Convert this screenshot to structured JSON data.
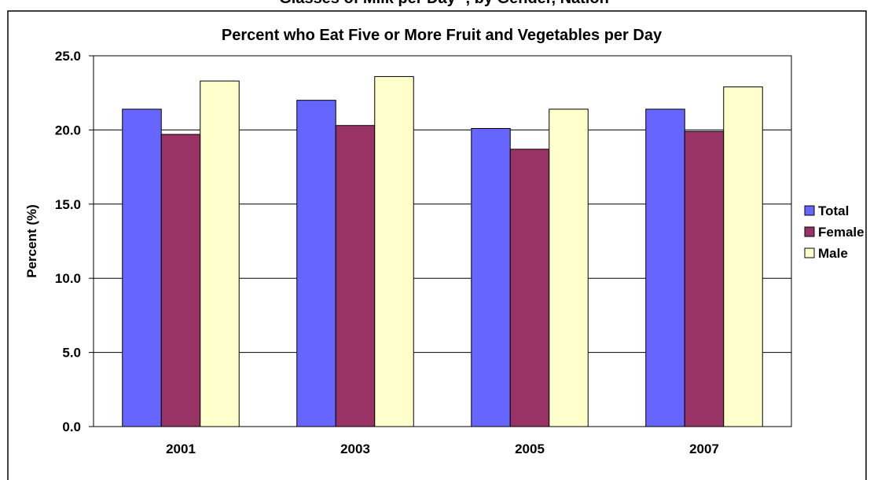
{
  "chart_data": {
    "type": "bar",
    "page_title_cut": "Glasses of Milk per Day , by Gender, Nation",
    "page_title_superscript": "a",
    "title": "Percent who Eat Five or More Fruit and Vegetables per Day",
    "xlabel": "",
    "ylabel": "Percent (%)",
    "ylim": [
      0,
      25
    ],
    "yticks": [
      "0.0",
      "5.0",
      "10.0",
      "15.0",
      "20.0",
      "25.0"
    ],
    "categories": [
      "2001",
      "2003",
      "2005",
      "2007"
    ],
    "series": [
      {
        "name": "Total",
        "color": "#6666ff",
        "values": [
          21.4,
          22.0,
          20.1,
          21.4
        ]
      },
      {
        "name": "Female",
        "color": "#993366",
        "values": [
          19.7,
          20.3,
          18.7,
          19.9
        ]
      },
      {
        "name": "Male",
        "color": "#ffffcc",
        "values": [
          23.3,
          23.6,
          21.4,
          22.9
        ]
      }
    ],
    "grid": true,
    "legend_position": "right"
  }
}
